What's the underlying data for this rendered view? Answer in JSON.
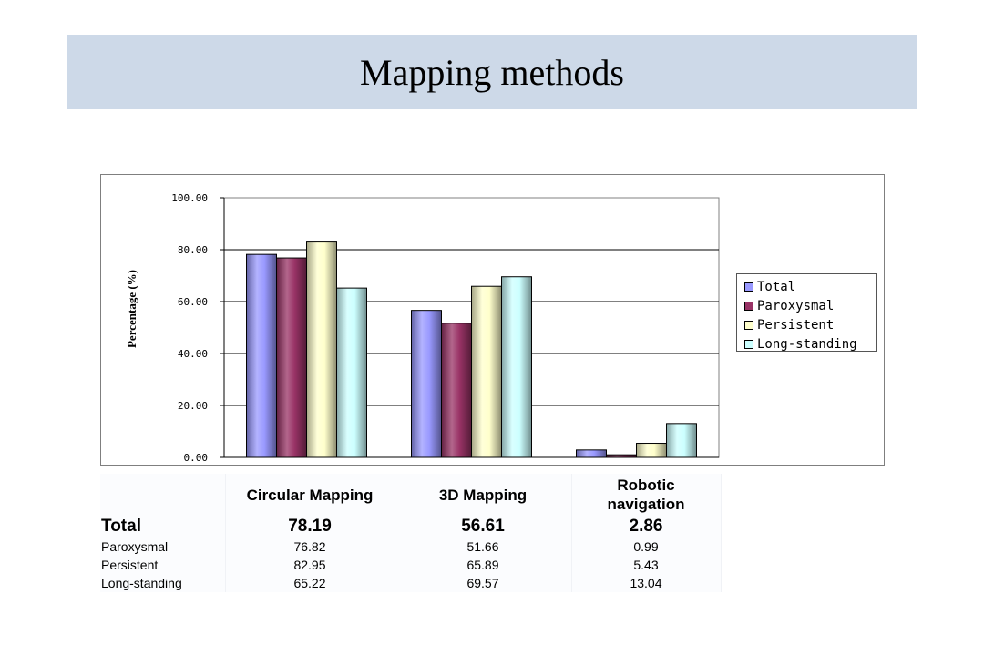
{
  "slide": {
    "title": "Mapping methods"
  },
  "chart_data": {
    "type": "bar",
    "categories": [
      "Circular Mapping",
      "3D Mapping",
      "Robotic navigation"
    ],
    "series": [
      {
        "name": "Total",
        "values": [
          78.19,
          56.61,
          2.86
        ],
        "color": "#9999ff"
      },
      {
        "name": "Paroxysmal",
        "values": [
          76.82,
          51.66,
          0.99
        ],
        "color": "#993366"
      },
      {
        "name": "Persistent",
        "values": [
          82.95,
          65.89,
          5.43
        ],
        "color": "#ffffcc"
      },
      {
        "name": "Long-standing",
        "values": [
          65.22,
          69.57,
          13.04
        ],
        "color": "#ccffff"
      }
    ],
    "ylabel": "Percentage (%)",
    "ylim": [
      0,
      100
    ],
    "yticks": [
      "0.00",
      "20.00",
      "40.00",
      "60.00",
      "80.00",
      "100.00"
    ],
    "grid": true,
    "legend_position": "right"
  },
  "table": {
    "columns": [
      "",
      "Circular Mapping",
      "3D Mapping",
      "Robotic navigation"
    ],
    "rows": [
      {
        "label": "Total",
        "values": [
          "78.19",
          "56.61",
          "2.86"
        ]
      },
      {
        "label": "Paroxysmal",
        "values": [
          "76.82",
          "51.66",
          "0.99"
        ]
      },
      {
        "label": "Persistent",
        "values": [
          "82.95",
          "65.89",
          "5.43"
        ]
      },
      {
        "label": "Long-standing",
        "values": [
          "65.22",
          "69.57",
          "13.04"
        ]
      }
    ]
  }
}
